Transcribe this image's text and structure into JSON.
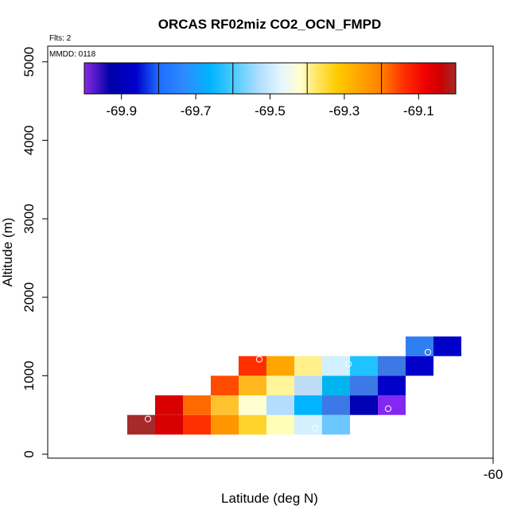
{
  "chart_data": {
    "type": "heatmap",
    "title": "ORCAS RF02miz CO2_OCN_FMPD",
    "xlabel": "Latitude (deg N)",
    "ylabel": "Altitude (m)",
    "notes": {
      "flights": "Flts: 2",
      "mmdd": "MMDD: 0118"
    },
    "x_ticks": [
      {
        "value": -60,
        "label": "-60"
      }
    ],
    "y_ticks": [
      {
        "value": 0,
        "label": "0"
      },
      {
        "value": 1000,
        "label": "1000"
      },
      {
        "value": 2000,
        "label": "2000"
      },
      {
        "value": 3000,
        "label": "3000"
      },
      {
        "value": 4000,
        "label": "4000"
      },
      {
        "value": 5000,
        "label": "5000"
      }
    ],
    "xlim": [
      -62.8,
      -60.0
    ],
    "ylim": [
      -50,
      5200
    ],
    "colorbar": {
      "range": [
        -70.0,
        -69.0
      ],
      "tick_values": [
        -69.9,
        -69.7,
        -69.5,
        -69.3,
        -69.1
      ],
      "tick_labels": [
        "-69.9",
        "-69.7",
        "-69.5",
        "-69.3",
        "-69.1"
      ],
      "boundaries": [
        -69.8,
        -69.6,
        -69.4,
        -69.2
      ],
      "stops": [
        {
          "v": -70.0,
          "color": "#8a2be2"
        },
        {
          "v": -69.93,
          "color": "#0000a8"
        },
        {
          "v": -69.86,
          "color": "#0000cd"
        },
        {
          "v": -69.8,
          "color": "#1e6cff"
        },
        {
          "v": -69.73,
          "color": "#2e8bff"
        },
        {
          "v": -69.66,
          "color": "#00b4ff"
        },
        {
          "v": -69.6,
          "color": "#48caff"
        },
        {
          "v": -69.53,
          "color": "#b0deff"
        },
        {
          "v": -69.47,
          "color": "#e6f6ff"
        },
        {
          "v": -69.42,
          "color": "#ffffd0"
        },
        {
          "v": -69.38,
          "color": "#ffe870"
        },
        {
          "v": -69.32,
          "color": "#ffcc00"
        },
        {
          "v": -69.26,
          "color": "#ffa500"
        },
        {
          "v": -69.2,
          "color": "#ff8000"
        },
        {
          "v": -69.14,
          "color": "#ff3000"
        },
        {
          "v": -69.08,
          "color": "#ee0000"
        },
        {
          "v": -69.04,
          "color": "#cc0000"
        },
        {
          "v": -69.0,
          "color": "#a52a2a"
        }
      ]
    },
    "cell_size": {
      "dlat": 0.175,
      "dalt": 250
    },
    "cells": [
      {
        "lat": -62.2125,
        "alt": 375,
        "color": "#a52a2a"
      },
      {
        "lat": -62.0375,
        "alt": 375,
        "color": "#d80000"
      },
      {
        "lat": -61.8625,
        "alt": 375,
        "color": "#ff3000"
      },
      {
        "lat": -61.6875,
        "alt": 375,
        "color": "#ff9500"
      },
      {
        "lat": -61.5125,
        "alt": 375,
        "color": "#ffd22d"
      },
      {
        "lat": -61.3375,
        "alt": 375,
        "color": "#ffffb8"
      },
      {
        "lat": -61.1625,
        "alt": 375,
        "color": "#d2f0ff"
      },
      {
        "lat": -60.9875,
        "alt": 375,
        "color": "#6cc6ff"
      },
      {
        "lat": -62.0375,
        "alt": 625,
        "color": "#d80000"
      },
      {
        "lat": -61.8625,
        "alt": 625,
        "color": "#ff6a00"
      },
      {
        "lat": -61.6875,
        "alt": 625,
        "color": "#ffc12d"
      },
      {
        "lat": -61.5125,
        "alt": 625,
        "color": "#ffffd2"
      },
      {
        "lat": -61.3375,
        "alt": 625,
        "color": "#b4dcff"
      },
      {
        "lat": -61.1625,
        "alt": 625,
        "color": "#00b4ff"
      },
      {
        "lat": -60.9875,
        "alt": 625,
        "color": "#3c78e6"
      },
      {
        "lat": -60.8125,
        "alt": 625,
        "color": "#0000b4"
      },
      {
        "lat": -60.6375,
        "alt": 625,
        "color": "#8228f0"
      },
      {
        "lat": -61.6875,
        "alt": 875,
        "color": "#ff4a00"
      },
      {
        "lat": -61.5125,
        "alt": 875,
        "color": "#ffb91e"
      },
      {
        "lat": -61.3375,
        "alt": 875,
        "color": "#fff59a"
      },
      {
        "lat": -61.1625,
        "alt": 875,
        "color": "#bedcf5"
      },
      {
        "lat": -60.9875,
        "alt": 875,
        "color": "#00b4f0"
      },
      {
        "lat": -60.8125,
        "alt": 875,
        "color": "#3c78e6"
      },
      {
        "lat": -60.6375,
        "alt": 875,
        "color": "#0000c8"
      },
      {
        "lat": -61.5125,
        "alt": 1125,
        "color": "#ff3000"
      },
      {
        "lat": -61.3375,
        "alt": 1125,
        "color": "#ffa500"
      },
      {
        "lat": -61.1625,
        "alt": 1125,
        "color": "#fff08c"
      },
      {
        "lat": -60.9875,
        "alt": 1125,
        "color": "#d2f0ff"
      },
      {
        "lat": -60.8125,
        "alt": 1125,
        "color": "#1ec3ff"
      },
      {
        "lat": -60.6375,
        "alt": 1125,
        "color": "#3c78e6"
      },
      {
        "lat": -60.4625,
        "alt": 1125,
        "color": "#0000c8"
      },
      {
        "lat": -60.4625,
        "alt": 1375,
        "color": "#2e7ff0"
      },
      {
        "lat": -60.2875,
        "alt": 1375,
        "color": "#0000c8"
      }
    ],
    "markers": [
      {
        "lat": -62.17,
        "alt": 450
      },
      {
        "lat": -61.12,
        "alt": 330
      },
      {
        "lat": -60.66,
        "alt": 580
      },
      {
        "lat": -61.47,
        "alt": 1210
      },
      {
        "lat": -60.91,
        "alt": 1150
      },
      {
        "lat": -60.41,
        "alt": 1300
      },
      {
        "lat": -60.0,
        "alt": 1380
      }
    ]
  }
}
